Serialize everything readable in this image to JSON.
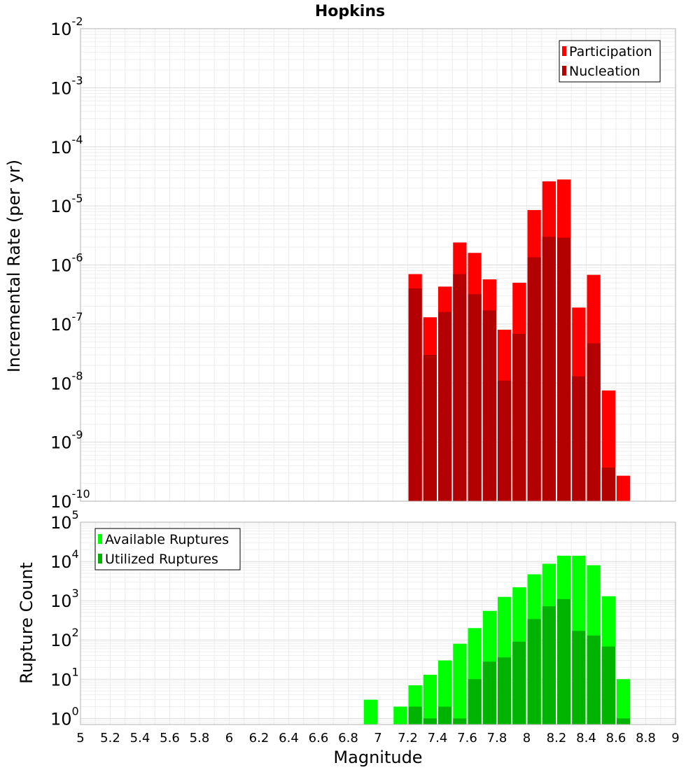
{
  "figure_title": "Hopkins",
  "x_axis_label": "Magnitude",
  "chart_data": [
    {
      "type": "bar",
      "title": "Hopkins",
      "xlabel": "Magnitude",
      "ylabel": "Incremental Rate (per yr)",
      "yscale": "log",
      "xlim": [
        5,
        9
      ],
      "ylim": [
        1e-10,
        0.01
      ],
      "grid": true,
      "legend_position": "top-right",
      "bin_width": 0.1,
      "x_ticks": [
        "5",
        "5.2",
        "5.4",
        "5.6",
        "5.8",
        "6",
        "6.2",
        "6.4",
        "6.6",
        "6.8",
        "7",
        "7.2",
        "7.4",
        "7.6",
        "7.8",
        "8",
        "8.2",
        "8.4",
        "8.6",
        "8.8",
        "9"
      ],
      "y_ticks": [
        {
          "value": 0.01,
          "base": "10",
          "exp": "-2"
        },
        {
          "value": 0.001,
          "base": "10",
          "exp": "-3"
        },
        {
          "value": 0.0001,
          "base": "10",
          "exp": "-4"
        },
        {
          "value": 1e-05,
          "base": "10",
          "exp": "-5"
        },
        {
          "value": 1e-06,
          "base": "10",
          "exp": "-6"
        },
        {
          "value": 1e-07,
          "base": "10",
          "exp": "-7"
        },
        {
          "value": 1e-08,
          "base": "10",
          "exp": "-8"
        },
        {
          "value": 1e-09,
          "base": "10",
          "exp": "-9"
        },
        {
          "value": 1e-10,
          "base": "10",
          "exp": "-10"
        }
      ],
      "x": [
        7.25,
        7.35,
        7.45,
        7.55,
        7.65,
        7.75,
        7.85,
        7.95,
        8.05,
        8.15,
        8.25,
        8.35,
        8.45,
        8.55,
        8.65
      ],
      "series": [
        {
          "name": "Participation",
          "color": "#ff0000",
          "values": [
            7e-07,
            1.3e-07,
            4.3e-07,
            2.4e-06,
            1.6e-06,
            5.7e-07,
            8e-08,
            5e-07,
            8.5e-06,
            2.6e-05,
            2.8e-05,
            1.9e-07,
            6.8e-07,
            7.5e-09,
            2.7e-10
          ]
        },
        {
          "name": "Nucleation",
          "color": "#b30000",
          "values": [
            4e-07,
            3e-08,
            1.6e-07,
            7e-07,
            3.2e-07,
            1.7e-07,
            1.1e-08,
            6.8e-08,
            1.35e-06,
            3e-06,
            2.9e-06,
            1.3e-08,
            4.7e-08,
            3.7e-10,
            null
          ]
        }
      ]
    },
    {
      "type": "bar",
      "xlabel": "Magnitude",
      "ylabel": "Rupture Count",
      "yscale": "log",
      "xlim": [
        5,
        9
      ],
      "ylim": [
        0.7,
        100000
      ],
      "grid": true,
      "legend_position": "top-left",
      "bin_width": 0.1,
      "y_ticks": [
        {
          "value": 100000,
          "base": "10",
          "exp": "5"
        },
        {
          "value": 10000,
          "base": "10",
          "exp": "4"
        },
        {
          "value": 1000,
          "base": "10",
          "exp": "3"
        },
        {
          "value": 100,
          "base": "10",
          "exp": "2"
        },
        {
          "value": 10,
          "base": "10",
          "exp": "1"
        },
        {
          "value": 1,
          "base": "10",
          "exp": "0"
        }
      ],
      "x": [
        6.95,
        7.05,
        7.15,
        7.25,
        7.35,
        7.45,
        7.55,
        7.65,
        7.75,
        7.85,
        7.95,
        8.05,
        8.15,
        8.25,
        8.35,
        8.45,
        8.55,
        8.65
      ],
      "series": [
        {
          "name": "Available Ruptures",
          "color": "#00ff00",
          "values": [
            3,
            null,
            2,
            7,
            13,
            30,
            80,
            200,
            550,
            1250,
            2200,
            4700,
            8700,
            14000,
            14000,
            8000,
            1300,
            10
          ]
        },
        {
          "name": "Utilized Ruptures",
          "color": "#00b300",
          "values": [
            null,
            null,
            null,
            2,
            1,
            2,
            1,
            10,
            28,
            36,
            90,
            340,
            720,
            1100,
            170,
            130,
            68,
            1
          ]
        }
      ]
    }
  ]
}
